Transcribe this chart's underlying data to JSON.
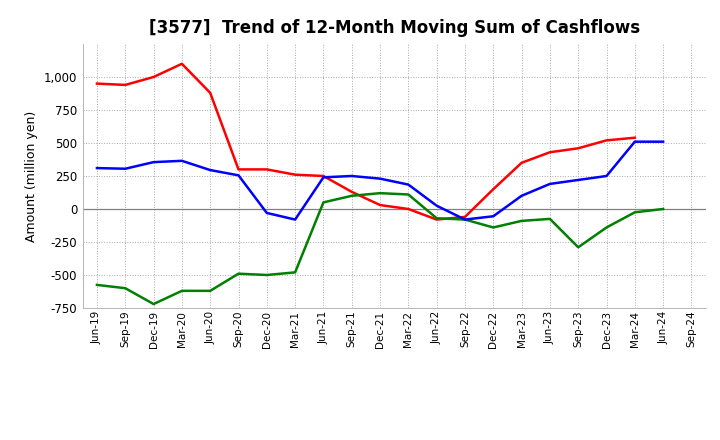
{
  "title": "[3577]  Trend of 12-Month Moving Sum of Cashflows",
  "ylabel": "Amount (million yen)",
  "x_labels": [
    "Jun-19",
    "Sep-19",
    "Dec-19",
    "Mar-20",
    "Jun-20",
    "Sep-20",
    "Dec-20",
    "Mar-21",
    "Jun-21",
    "Sep-21",
    "Dec-21",
    "Mar-22",
    "Jun-22",
    "Sep-22",
    "Dec-22",
    "Mar-23",
    "Jun-23",
    "Sep-23",
    "Dec-23",
    "Mar-24",
    "Jun-24",
    "Sep-24"
  ],
  "operating": [
    950,
    940,
    1000,
    1100,
    880,
    300,
    300,
    260,
    250,
    130,
    30,
    0,
    -80,
    -60,
    150,
    350,
    430,
    460,
    520,
    540,
    null,
    null
  ],
  "investing": [
    -575,
    -600,
    -720,
    -620,
    -620,
    -490,
    -500,
    -480,
    50,
    100,
    120,
    110,
    -70,
    -80,
    -140,
    -90,
    -75,
    -290,
    -140,
    -25,
    0,
    null
  ],
  "free": [
    310,
    305,
    355,
    365,
    295,
    255,
    -30,
    -80,
    240,
    250,
    230,
    185,
    25,
    -80,
    -55,
    100,
    190,
    220,
    250,
    510,
    510,
    null
  ],
  "ylim": [
    -750,
    1250
  ],
  "yticks": [
    -750,
    -500,
    -250,
    0,
    250,
    500,
    750,
    1000
  ],
  "operating_color": "#ff0000",
  "investing_color": "#008000",
  "free_color": "#0000ff",
  "bg_color": "#ffffff",
  "grid_color": "#aaaaaa"
}
